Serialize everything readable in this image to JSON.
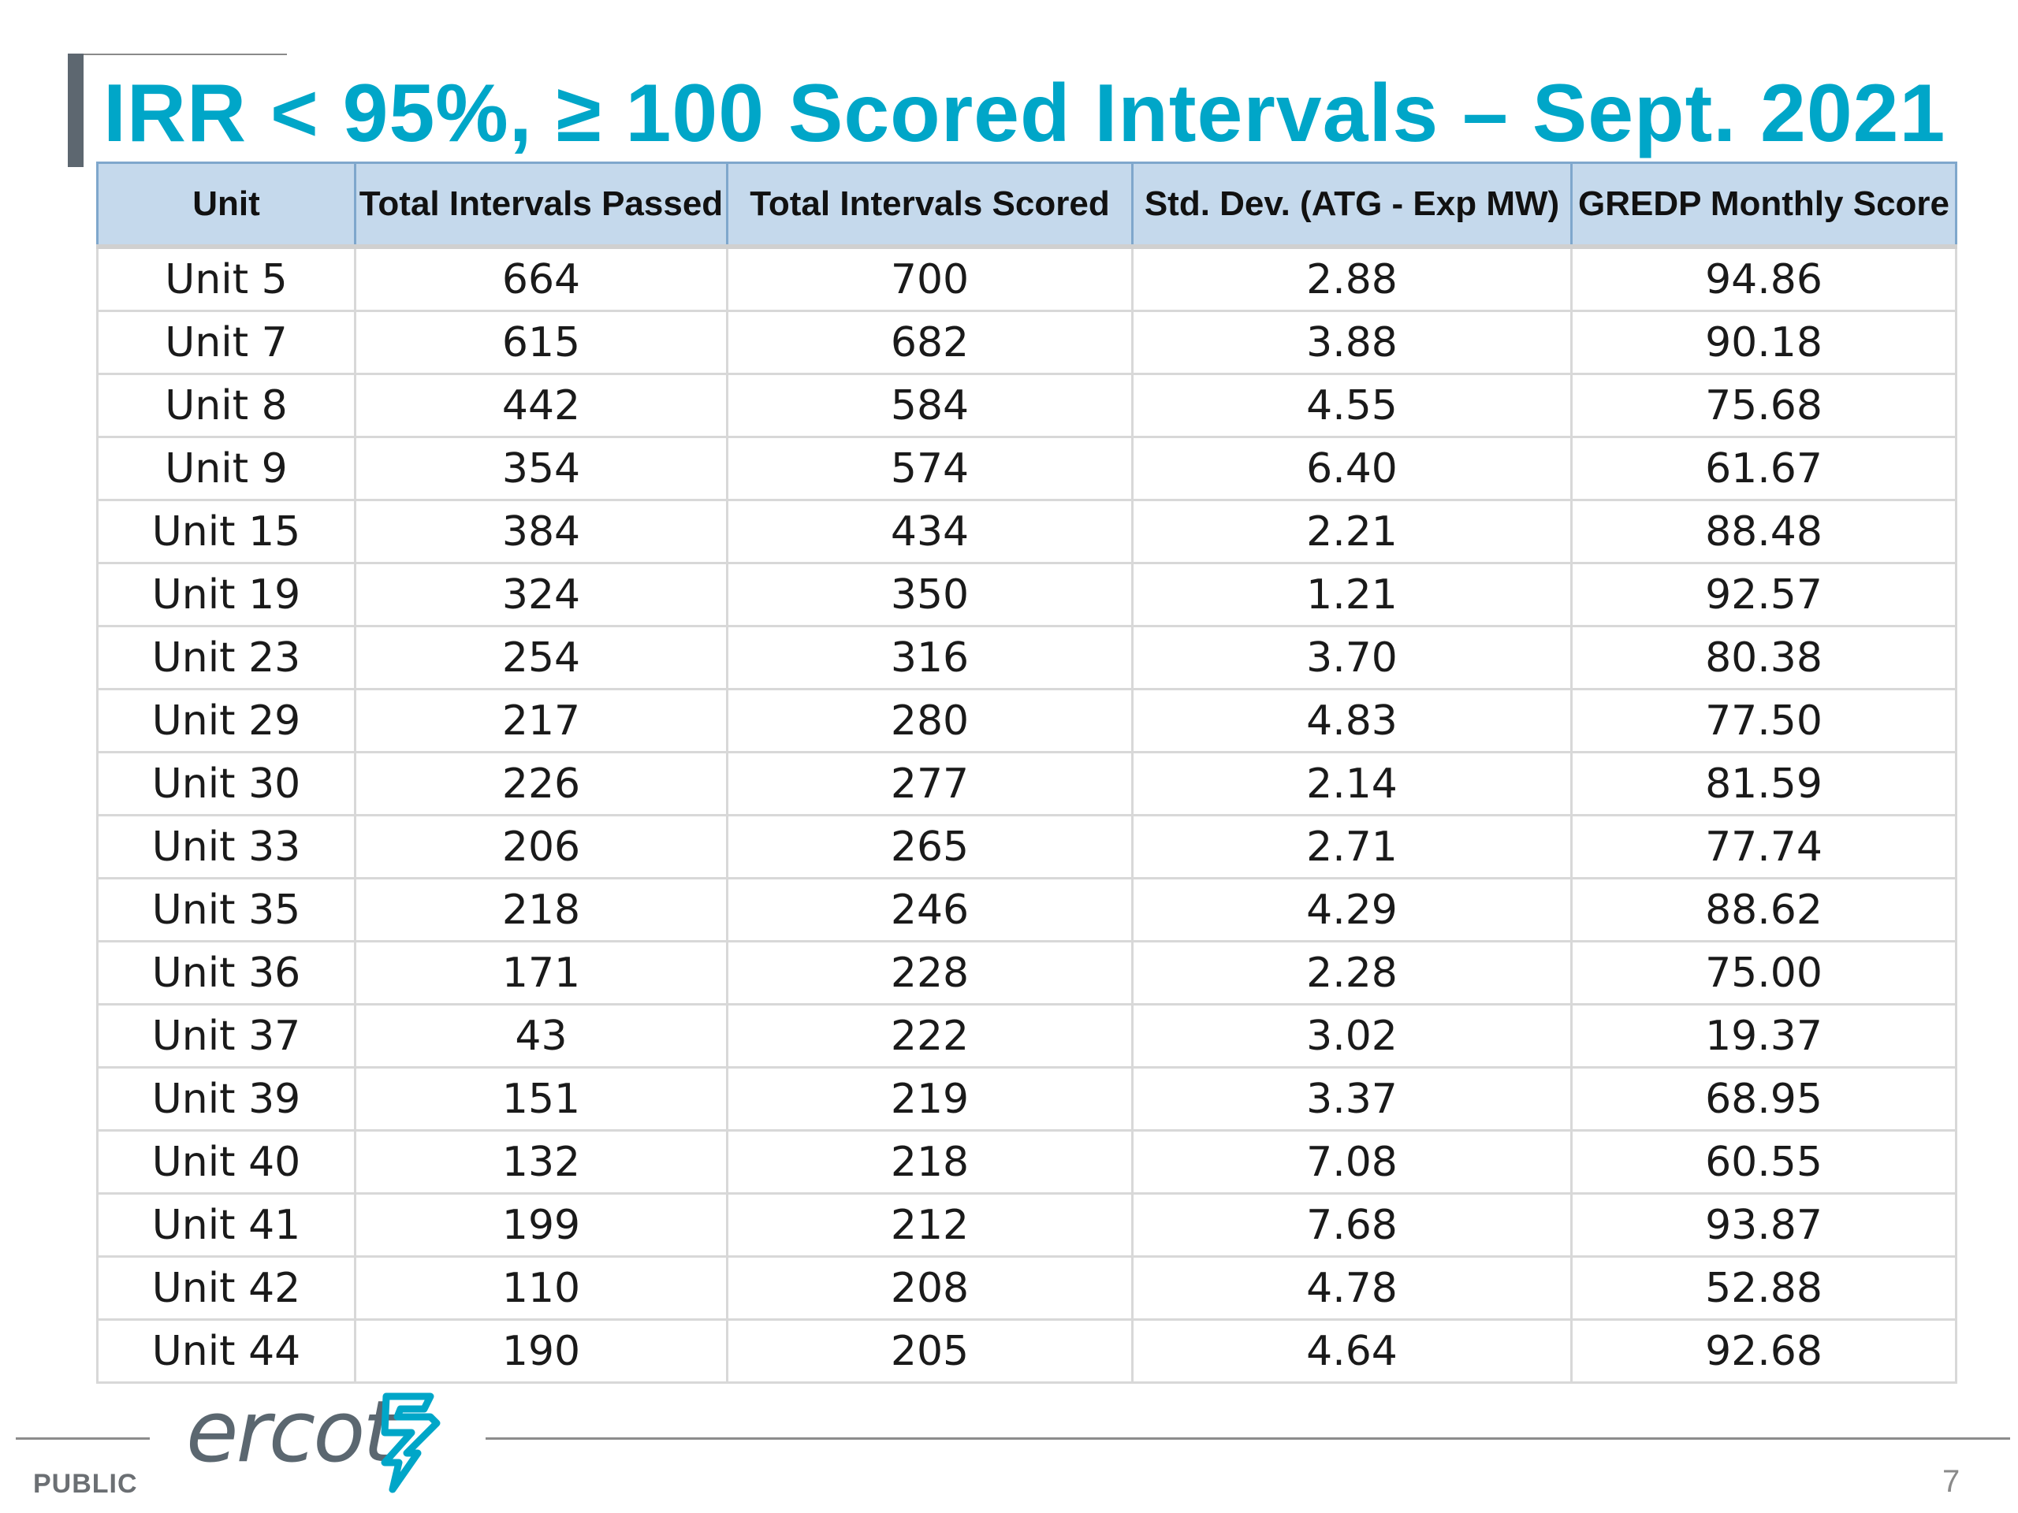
{
  "slide": {
    "title": "IRR < 95%, ≥ 100 Scored Intervals – Sept. 2021",
    "footer_label": "PUBLIC",
    "page_number": "7",
    "logo_text": "ercot",
    "logo_icon": "ercot-lightning-bolt-icon",
    "accent_color": "#00a6c8",
    "header_fill_color": "#c5d9ec"
  },
  "table": {
    "columns": [
      "Unit",
      "Total Intervals Passed",
      "Total Intervals Scored",
      "Std. Dev. (ATG - Exp MW)",
      "GREDP Monthly Score"
    ],
    "rows": [
      [
        "Unit 5",
        "664",
        "700",
        "2.88",
        "94.86"
      ],
      [
        "Unit 7",
        "615",
        "682",
        "3.88",
        "90.18"
      ],
      [
        "Unit 8",
        "442",
        "584",
        "4.55",
        "75.68"
      ],
      [
        "Unit 9",
        "354",
        "574",
        "6.40",
        "61.67"
      ],
      [
        "Unit 15",
        "384",
        "434",
        "2.21",
        "88.48"
      ],
      [
        "Unit 19",
        "324",
        "350",
        "1.21",
        "92.57"
      ],
      [
        "Unit 23",
        "254",
        "316",
        "3.70",
        "80.38"
      ],
      [
        "Unit 29",
        "217",
        "280",
        "4.83",
        "77.50"
      ],
      [
        "Unit 30",
        "226",
        "277",
        "2.14",
        "81.59"
      ],
      [
        "Unit 33",
        "206",
        "265",
        "2.71",
        "77.74"
      ],
      [
        "Unit 35",
        "218",
        "246",
        "4.29",
        "88.62"
      ],
      [
        "Unit 36",
        "171",
        "228",
        "2.28",
        "75.00"
      ],
      [
        "Unit 37",
        "43",
        "222",
        "3.02",
        "19.37"
      ],
      [
        "Unit 39",
        "151",
        "219",
        "3.37",
        "68.95"
      ],
      [
        "Unit 40",
        "132",
        "218",
        "7.08",
        "60.55"
      ],
      [
        "Unit 41",
        "199",
        "212",
        "7.68",
        "93.87"
      ],
      [
        "Unit 42",
        "110",
        "208",
        "4.78",
        "52.88"
      ],
      [
        "Unit 44",
        "190",
        "205",
        "4.64",
        "92.68"
      ]
    ]
  }
}
